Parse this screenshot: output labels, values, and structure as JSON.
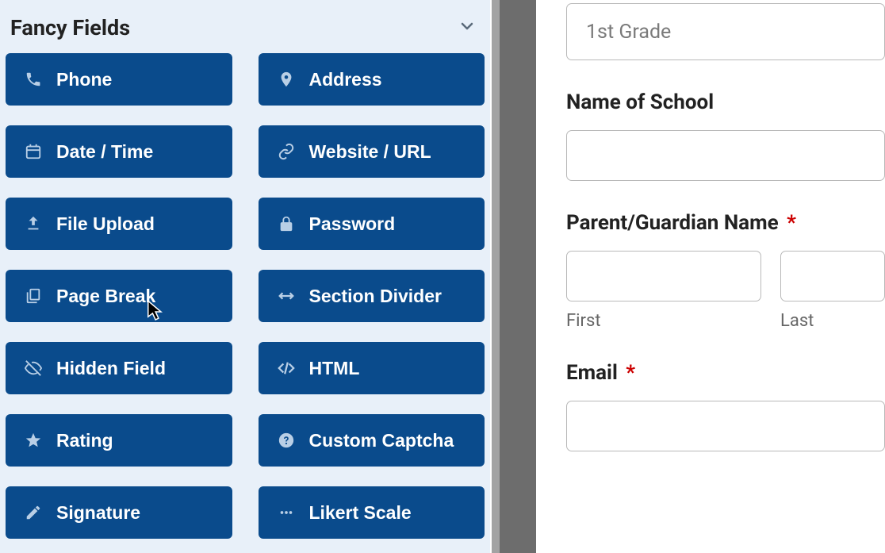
{
  "sidebar": {
    "section_title": "Fancy Fields",
    "fields": [
      {
        "icon": "phone",
        "label": "Phone"
      },
      {
        "icon": "pin",
        "label": "Address"
      },
      {
        "icon": "calendar",
        "label": "Date / Time"
      },
      {
        "icon": "link",
        "label": "Website / URL"
      },
      {
        "icon": "upload",
        "label": "File Upload"
      },
      {
        "icon": "lock",
        "label": "Password"
      },
      {
        "icon": "pages",
        "label": "Page Break"
      },
      {
        "icon": "harrow",
        "label": "Section Divider"
      },
      {
        "icon": "eyeoff",
        "label": "Hidden Field"
      },
      {
        "icon": "code",
        "label": "HTML"
      },
      {
        "icon": "star",
        "label": "Rating"
      },
      {
        "icon": "help",
        "label": "Custom Captcha"
      },
      {
        "icon": "pencil",
        "label": "Signature"
      },
      {
        "icon": "dots",
        "label": "Likert Scale"
      }
    ]
  },
  "preview": {
    "grade_value": "1st Grade",
    "school_label": "Name of School",
    "guardian_label": "Parent/Guardian Name",
    "guardian_required": "*",
    "first_label": "First",
    "last_label": "Last",
    "email_label": "Email",
    "email_required": "*"
  },
  "colors": {
    "sidebar_bg": "#e8f0f9",
    "button_bg": "#0a4b8c",
    "button_icon": "#b9cfe6",
    "required": "#cc0000",
    "input_border": "#b9b9b9",
    "placeholder": "#7a7a7a"
  }
}
